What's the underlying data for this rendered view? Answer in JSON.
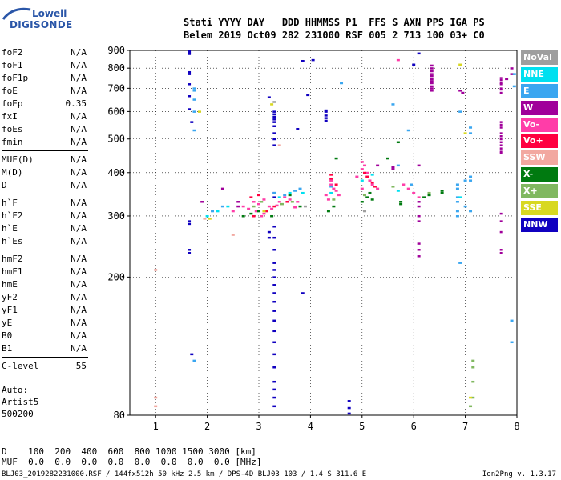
{
  "logo": {
    "line1": "Lowell",
    "line2": "DIGISONDE"
  },
  "header": {
    "line1": "Stati YYYY DAY   DDD HHMMSS P1  FFS S AXN PPS IGA PS",
    "line2": "Belem 2019 Oct09 282 231000 RSF 005 2 713 100 03+ C0"
  },
  "params": {
    "group1": [
      {
        "name": "foF2",
        "value": "N/A"
      },
      {
        "name": "foF1",
        "value": "N/A"
      },
      {
        "name": "foF1p",
        "value": "N/A"
      },
      {
        "name": "foE",
        "value": "N/A"
      },
      {
        "name": "foEp",
        "value": "0.35"
      },
      {
        "name": "fxI",
        "value": "N/A"
      },
      {
        "name": "foEs",
        "value": "N/A"
      },
      {
        "name": "fmin",
        "value": "N/A"
      }
    ],
    "group2": [
      {
        "name": "MUF(D)",
        "value": "N/A"
      },
      {
        "name": "M(D)",
        "value": "N/A"
      },
      {
        "name": "D",
        "value": "N/A"
      }
    ],
    "group3": [
      {
        "name": "h`F",
        "value": "N/A"
      },
      {
        "name": "h`F2",
        "value": "N/A"
      },
      {
        "name": "h`E",
        "value": "N/A"
      },
      {
        "name": "h`Es",
        "value": "N/A"
      }
    ],
    "group4": [
      {
        "name": "hmF2",
        "value": "N/A"
      },
      {
        "name": "hmF1",
        "value": "N/A"
      },
      {
        "name": "hmE",
        "value": "N/A"
      },
      {
        "name": "yF2",
        "value": "N/A"
      },
      {
        "name": "yF1",
        "value": "N/A"
      },
      {
        "name": "yE",
        "value": "N/A"
      },
      {
        "name": "B0",
        "value": "N/A"
      },
      {
        "name": "B1",
        "value": "N/A"
      }
    ],
    "group5": [
      {
        "name": "C-level",
        "value": "55"
      }
    ]
  },
  "auto": {
    "line1": "Auto:",
    "line2": "Artist5",
    "line3": "500200"
  },
  "muf_table": {
    "d_row": "D    100  200  400  600  800 1000 1500 3000 [km]",
    "muf_row": "MUF  0.0  0.0  0.0  0.0  0.0  0.0  0.0  0.0 [MHz]"
  },
  "footer": {
    "left": "BLJ03_2019282231000.RSF / 144fx512h 50 kHz 2.5 km / DPS-4D BLJ03 103 / 1.4 S 311.6 E",
    "right": "Ion2Png v. 1.3.17"
  },
  "legend": [
    {
      "label": "NoVal",
      "color": "#9e9e9e"
    },
    {
      "label": "NNE",
      "color": "#00e0f0"
    },
    {
      "label": "E",
      "color": "#3aa6f0"
    },
    {
      "label": "W",
      "color": "#a0009a"
    },
    {
      "label": "Vo-",
      "color": "#ff3da8"
    },
    {
      "label": "Vo+",
      "color": "#ff0040"
    },
    {
      "label": "SSW",
      "color": "#f2a8a0"
    },
    {
      "label": "X-",
      "color": "#007a10"
    },
    {
      "label": "X+",
      "color": "#80b860"
    },
    {
      "label": "SSE",
      "color": "#d8d820"
    },
    {
      "label": "NNW",
      "color": "#1000c0"
    }
  ],
  "chart_data": {
    "type": "scatter",
    "title": "",
    "xlabel": "",
    "ylabel": "",
    "xlim": [
      0.5,
      8
    ],
    "ylim": [
      80,
      900
    ],
    "yscale": "log",
    "grid": "dotted",
    "x_ticks": [
      "1",
      "2",
      "3",
      "4",
      "5",
      "6",
      "7",
      "8"
    ],
    "y_ticks": [
      "80",
      "200",
      "300",
      "400",
      "500",
      "600",
      "700",
      "800",
      "900"
    ],
    "series": [
      {
        "name": "NNW",
        "color": "#1000c0",
        "points": [
          [
            1.65,
            895
          ],
          [
            1.65,
            888
          ],
          [
            1.65,
            880
          ],
          [
            1.65,
            780
          ],
          [
            1.65,
            770
          ],
          [
            1.65,
            720
          ],
          [
            1.65,
            665
          ],
          [
            1.65,
            610
          ],
          [
            1.7,
            560
          ],
          [
            1.65,
            290
          ],
          [
            1.65,
            285
          ],
          [
            1.65,
            240
          ],
          [
            1.65,
            235
          ],
          [
            1.7,
            120
          ],
          [
            3.3,
            600
          ],
          [
            3.3,
            590
          ],
          [
            3.3,
            580
          ],
          [
            3.3,
            570
          ],
          [
            3.3,
            560
          ],
          [
            3.3,
            545
          ],
          [
            3.3,
            520
          ],
          [
            3.3,
            500
          ],
          [
            3.3,
            480
          ],
          [
            3.2,
            660
          ],
          [
            3.3,
            350
          ],
          [
            3.3,
            340
          ],
          [
            3.3,
            280
          ],
          [
            3.3,
            260
          ],
          [
            3.3,
            240
          ],
          [
            3.3,
            220
          ],
          [
            3.3,
            210
          ],
          [
            3.3,
            200
          ],
          [
            3.3,
            190
          ],
          [
            3.3,
            180
          ],
          [
            3.3,
            170
          ],
          [
            3.3,
            160
          ],
          [
            3.3,
            150
          ],
          [
            3.3,
            140
          ],
          [
            3.3,
            130
          ],
          [
            3.3,
            120
          ],
          [
            3.3,
            110
          ],
          [
            3.3,
            100
          ],
          [
            3.3,
            95
          ],
          [
            3.3,
            90
          ],
          [
            3.3,
            85
          ],
          [
            3.2,
            270
          ],
          [
            3.2,
            260
          ],
          [
            3.85,
            840
          ],
          [
            4.05,
            845
          ],
          [
            3.95,
            670
          ],
          [
            3.75,
            535
          ],
          [
            4.3,
            605
          ],
          [
            4.3,
            600
          ],
          [
            4.3,
            585
          ],
          [
            4.3,
            575
          ],
          [
            4.3,
            565
          ],
          [
            3.85,
            180
          ],
          [
            4.75,
            88
          ],
          [
            4.75,
            84
          ],
          [
            4.75,
            81
          ],
          [
            6.1,
            883
          ],
          [
            6.0,
            820
          ]
        ]
      },
      {
        "name": "W",
        "color": "#a0009a",
        "points": [
          [
            6.35,
            815
          ],
          [
            6.35,
            800
          ],
          [
            6.35,
            785
          ],
          [
            6.35,
            770
          ],
          [
            6.35,
            760
          ],
          [
            6.35,
            745
          ],
          [
            6.35,
            735
          ],
          [
            6.35,
            725
          ],
          [
            6.35,
            710
          ],
          [
            6.35,
            700
          ],
          [
            6.35,
            690
          ],
          [
            6.9,
            690
          ],
          [
            6.95,
            680
          ],
          [
            7.7,
            560
          ],
          [
            7.7,
            550
          ],
          [
            7.7,
            540
          ],
          [
            7.7,
            520
          ],
          [
            7.7,
            510
          ],
          [
            7.7,
            500
          ],
          [
            7.7,
            490
          ],
          [
            7.7,
            480
          ],
          [
            7.7,
            470
          ],
          [
            7.7,
            460
          ],
          [
            7.7,
            455
          ],
          [
            7.7,
            750
          ],
          [
            7.7,
            740
          ],
          [
            7.7,
            725
          ],
          [
            7.7,
            720
          ],
          [
            7.7,
            700
          ],
          [
            7.7,
            695
          ],
          [
            7.7,
            680
          ],
          [
            7.9,
            800
          ],
          [
            7.9,
            770
          ],
          [
            7.8,
            745
          ],
          [
            6.1,
            420
          ],
          [
            6.1,
            330
          ],
          [
            6.1,
            320
          ],
          [
            6.1,
            300
          ],
          [
            6.1,
            290
          ],
          [
            6.1,
            250
          ],
          [
            6.1,
            240
          ],
          [
            6.1,
            230
          ],
          [
            7.7,
            305
          ],
          [
            7.7,
            290
          ],
          [
            7.7,
            270
          ],
          [
            7.7,
            240
          ],
          [
            7.7,
            235
          ],
          [
            5.6,
            415
          ],
          [
            5.6,
            410
          ],
          [
            5.3,
            420
          ],
          [
            2.6,
            330
          ],
          [
            2.6,
            320
          ],
          [
            2.3,
            360
          ],
          [
            1.9,
            330
          ]
        ]
      },
      {
        "name": "Vo-",
        "color": "#ff3da8",
        "points": [
          [
            5.7,
            845
          ],
          [
            2.5,
            310
          ],
          [
            2.7,
            320
          ],
          [
            2.8,
            315
          ],
          [
            2.9,
            330
          ],
          [
            3.0,
            325
          ],
          [
            3.1,
            335
          ],
          [
            3.2,
            320
          ],
          [
            3.4,
            330
          ],
          [
            3.5,
            340
          ],
          [
            3.6,
            335
          ],
          [
            4.4,
            380
          ],
          [
            4.4,
            370
          ],
          [
            4.45,
            360
          ],
          [
            4.5,
            355
          ],
          [
            4.55,
            345
          ],
          [
            4.9,
            390
          ],
          [
            5.0,
            410
          ],
          [
            5.05,
            420
          ],
          [
            5.1,
            400
          ],
          [
            5.15,
            380
          ],
          [
            5.2,
            370
          ],
          [
            5.3,
            360
          ],
          [
            5.8,
            370
          ],
          [
            5.9,
            360
          ],
          [
            6.0,
            350
          ],
          [
            6.1,
            340
          ],
          [
            3.05,
            300
          ],
          [
            3.1,
            305
          ],
          [
            2.95,
            310
          ],
          [
            3.25,
            315
          ],
          [
            3.35,
            322
          ],
          [
            4.3,
            345
          ],
          [
            4.35,
            335
          ],
          [
            5.0,
            430
          ],
          [
            5.0,
            360
          ],
          [
            3.7,
            318
          ],
          [
            3.75,
            330
          ]
        ]
      },
      {
        "name": "Vo+",
        "color": "#ff0040",
        "points": [
          [
            2.85,
            340
          ],
          [
            3.0,
            345
          ],
          [
            3.3,
            320
          ],
          [
            4.4,
            395
          ],
          [
            4.4,
            385
          ],
          [
            5.05,
            400
          ],
          [
            5.1,
            390
          ],
          [
            5.2,
            375
          ],
          [
            3.55,
            330
          ],
          [
            2.9,
            300
          ],
          [
            3.15,
            310
          ],
          [
            4.5,
            370
          ],
          [
            5.25,
            365
          ]
        ]
      },
      {
        "name": "E",
        "color": "#3aa6f0",
        "points": [
          [
            1.75,
            700
          ],
          [
            1.75,
            690
          ],
          [
            1.75,
            650
          ],
          [
            1.75,
            600
          ],
          [
            1.75,
            530
          ],
          [
            4.6,
            725
          ],
          [
            5.6,
            630
          ],
          [
            5.7,
            420
          ],
          [
            5.9,
            530
          ],
          [
            5.95,
            370
          ],
          [
            6.9,
            600
          ],
          [
            6.85,
            370
          ],
          [
            6.85,
            360
          ],
          [
            6.85,
            340
          ],
          [
            6.85,
            330
          ],
          [
            6.85,
            310
          ],
          [
            6.85,
            300
          ],
          [
            7.0,
            320
          ],
          [
            7.1,
            310
          ],
          [
            7.1,
            390
          ],
          [
            7.1,
            380
          ],
          [
            7.1,
            540
          ],
          [
            7.1,
            520
          ],
          [
            7.0,
            380
          ],
          [
            7.9,
            150
          ],
          [
            7.9,
            130
          ],
          [
            7.95,
            710
          ],
          [
            7.95,
            770
          ],
          [
            2.1,
            310
          ],
          [
            2.3,
            320
          ],
          [
            3.3,
            350
          ],
          [
            3.5,
            345
          ],
          [
            3.7,
            355
          ],
          [
            3.8,
            360
          ],
          [
            4.4,
            365
          ],
          [
            1.75,
            115
          ],
          [
            6.9,
            220
          ]
        ]
      },
      {
        "name": "NNE",
        "color": "#00e0f0",
        "points": [
          [
            2.0,
            300
          ],
          [
            2.2,
            310
          ],
          [
            3.4,
            340
          ],
          [
            3.6,
            350
          ],
          [
            3.85,
            350
          ],
          [
            4.4,
            350
          ],
          [
            5.0,
            380
          ],
          [
            5.2,
            395
          ],
          [
            5.7,
            355
          ],
          [
            6.9,
            340
          ],
          [
            2.4,
            320
          ]
        ]
      },
      {
        "name": "X-",
        "color": "#007a10",
        "points": [
          [
            2.7,
            300
          ],
          [
            2.85,
            305
          ],
          [
            3.0,
            310
          ],
          [
            3.25,
            300
          ],
          [
            3.6,
            345
          ],
          [
            3.8,
            320
          ],
          [
            4.35,
            310
          ],
          [
            4.45,
            320
          ],
          [
            4.5,
            440
          ],
          [
            5.0,
            330
          ],
          [
            5.1,
            340
          ],
          [
            5.15,
            350
          ],
          [
            5.2,
            335
          ],
          [
            5.7,
            490
          ],
          [
            5.75,
            330
          ],
          [
            5.75,
            325
          ],
          [
            6.2,
            340
          ],
          [
            6.3,
            345
          ],
          [
            6.55,
            355
          ],
          [
            6.55,
            350
          ],
          [
            5.5,
            440
          ]
        ]
      },
      {
        "name": "X+",
        "color": "#80b860",
        "points": [
          [
            2.9,
            320
          ],
          [
            3.05,
            330
          ],
          [
            3.45,
            325
          ],
          [
            3.65,
            330
          ],
          [
            4.45,
            335
          ],
          [
            5.05,
            345
          ],
          [
            5.6,
            365
          ],
          [
            6.3,
            350
          ],
          [
            7.15,
            115
          ],
          [
            7.15,
            110
          ],
          [
            7.15,
            100
          ],
          [
            7.15,
            90
          ],
          [
            7.1,
            85
          ]
        ]
      },
      {
        "name": "SSW",
        "color": "#f2a8a0",
        "points": [
          [
            1.0,
            210
          ],
          [
            1.0,
            90
          ],
          [
            1.0,
            85
          ],
          [
            2.5,
            265
          ],
          [
            3.4,
            480
          ],
          [
            1.95,
            295
          ]
        ]
      },
      {
        "name": "SSE",
        "color": "#d8d820",
        "points": [
          [
            1.85,
            600
          ],
          [
            3.25,
            630
          ],
          [
            6.9,
            820
          ],
          [
            7.0,
            520
          ],
          [
            7.1,
            90
          ],
          [
            2.05,
            295
          ],
          [
            3.1,
            310
          ]
        ]
      },
      {
        "name": "NoVal",
        "color": "#9e9e9e",
        "points": [
          [
            3.3,
            640
          ],
          [
            3.9,
            320
          ],
          [
            5.05,
            310
          ]
        ]
      }
    ]
  }
}
